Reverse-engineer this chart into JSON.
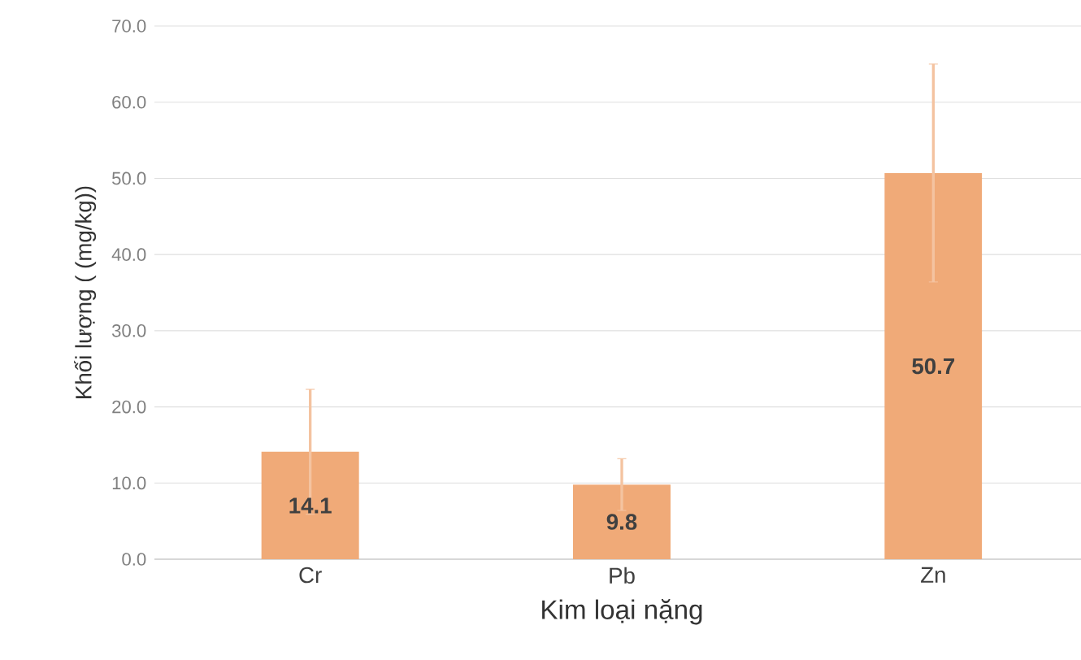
{
  "chart_data": {
    "type": "bar",
    "xlabel": "Kim loại nặng",
    "ylabel": "Khối lượng ( (mg/kg))",
    "categories": [
      "Cr",
      "Pb",
      "Zn"
    ],
    "values": [
      14.1,
      9.8,
      50.7
    ],
    "errors": [
      8.2,
      3.4,
      14.3
    ],
    "color": "#f0aa78",
    "data_labels": true,
    "grid": "y",
    "ylim": [
      0,
      70
    ],
    "yticks": [
      {
        "value": 0,
        "label": "0.0"
      },
      {
        "value": 10,
        "label": "10.0"
      },
      {
        "value": 20,
        "label": "20.0"
      },
      {
        "value": 30,
        "label": "30.0"
      },
      {
        "value": 40,
        "label": "40.0"
      },
      {
        "value": 50,
        "label": "50.0"
      },
      {
        "value": 60,
        "label": "60.0"
      },
      {
        "value": 70,
        "label": "70.0"
      }
    ]
  }
}
